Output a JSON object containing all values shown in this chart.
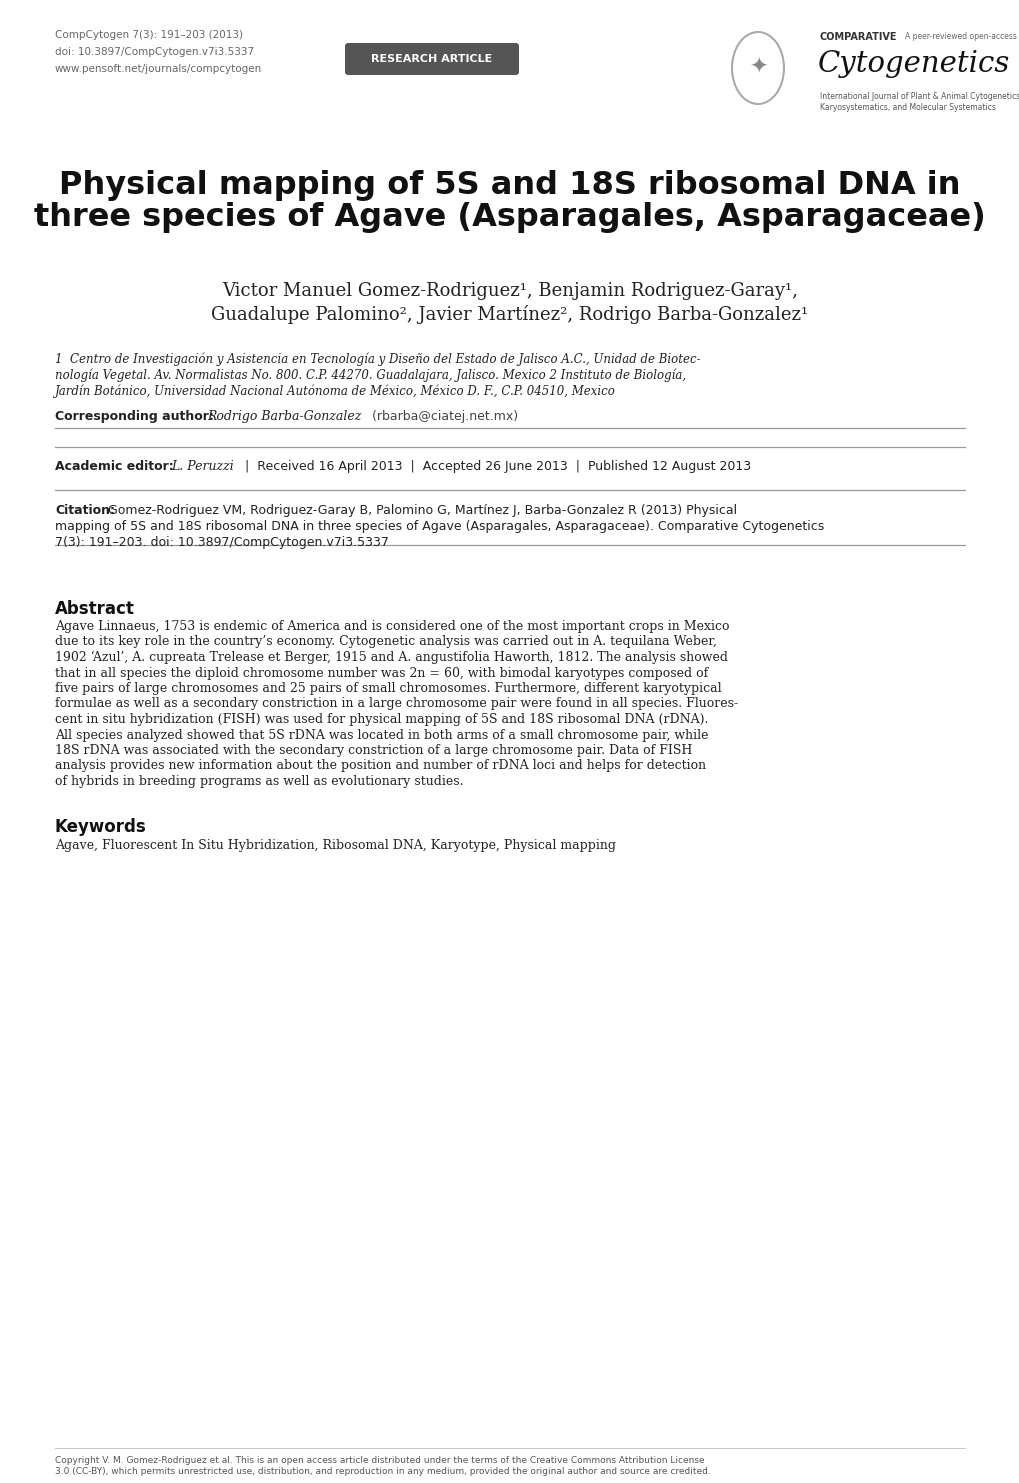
{
  "bg_color": "#ffffff",
  "header_left_lines": [
    "CompCytogen 7(3): 191–203 (2013)",
    "doi: 10.3897/CompCytogen.v7i3.5337",
    "www.pensoft.net/journals/compcytogen"
  ],
  "badge_text": "RESEARCH ARTICLE",
  "badge_color": "#555555",
  "badge_text_color": "#ffffff",
  "journal_name": "Cytogenetics",
  "journal_prefix": "COMPARATIVE",
  "journal_sub": "A peer-reviewed open-access journal",
  "journal_subline1": "International Journal of Plant & Animal Cytogenetics,",
  "journal_subline2": "Karyosystematics, and Molecular Systematics",
  "title_line1": "Physical mapping of 5S and 18S ribosomal DNA in",
  "title_line2": "three species of Agave (Asparagales, Asparagaceae)",
  "authors_line1": "Victor Manuel Gomez-Rodriguez¹, Benjamin Rodriguez-Garay¹,",
  "authors_line2": "Guadalupe Palomino², Javier Martínez², Rodrigo Barba-Gonzalez¹",
  "affil1": "1  Centro de Investigación y Asistencia en Tecnología y Diseño del Estado de Jalisco A.C., Unidad de Biotec-",
  "affil2": "nología Vegetal. Av. Normalistas No. 800. C.P. 44270. Guadalajara, Jalisco. Mexico 2 Instituto de Biología,",
  "affil3": "Jardín Botánico, Universidad Nacional Autónoma de México, México D. F., C.P. 04510, Mexico",
  "corr_label": "Corresponding author: ",
  "corr_name": "Rodrigo Barba-Gonzalez",
  "corr_email": " (rbarba@ciatej.net.mx)",
  "editor_label": "Academic editor: ",
  "editor_name": "L. Peruzzi",
  "editor_rest": "  |  Received 16 April 2013  |  Accepted 26 June 2013  |  Published 12 August 2013",
  "citation_label": "Citation:",
  "citation_line1": " Gomez-Rodriguez VM, Rodriguez-Garay B, Palomino G, Martínez J, Barba-Gonzalez R (2013) Physical",
  "citation_line2": "mapping of 5S and 18S ribosomal DNA in three species of Agave (Asparagales, Asparagaceae). Comparative Cytogenetics",
  "citation_line3": "7(3): 191–203. doi: 10.3897/CompCytogen.v7i3.5337",
  "abstract_title": "Abstract",
  "abstract_lines": [
    "Agave Linnaeus, 1753 is endemic of America and is considered one of the most important crops in Mexico",
    "due to its key role in the country’s economy. Cytogenetic analysis was carried out in A. tequilana Weber,",
    "1902 ‘Azul’, A. cupreata Trelease et Berger, 1915 and A. angustifolia Haworth, 1812. The analysis showed",
    "that in all species the diploid chromosome number was 2n = 60, with bimodal karyotypes composed of",
    "five pairs of large chromosomes and 25 pairs of small chromosomes. Furthermore, different karyotypical",
    "formulae as well as a secondary constriction in a large chromosome pair were found in all species. Fluores-",
    "cent in situ hybridization (FISH) was used for physical mapping of 5S and 18S ribosomal DNA (rDNA).",
    "All species analyzed showed that 5S rDNA was located in both arms of a small chromosome pair, while",
    "18S rDNA was associated with the secondary constriction of a large chromosome pair. Data of FISH",
    "analysis provides new information about the position and number of rDNA loci and helps for detection",
    "of hybrids in breeding programs as well as evolutionary studies."
  ],
  "keywords_title": "Keywords",
  "keywords_text": "Agave, Fluorescent In Situ Hybridization, Ribosomal DNA, Karyotype, Physical mapping",
  "footer_line1": "Copyright V. M. Gomez-Rodriguez et al. This is an open access article distributed under the terms of the Creative Commons Attribution License",
  "footer_line2": "3.0 (CC-BY), which permits unrestricted use, distribution, and reproduction in any medium, provided the original author and source are credited.",
  "text_color": "#222222",
  "gray_color": "#666666",
  "rule_color": "#999999"
}
